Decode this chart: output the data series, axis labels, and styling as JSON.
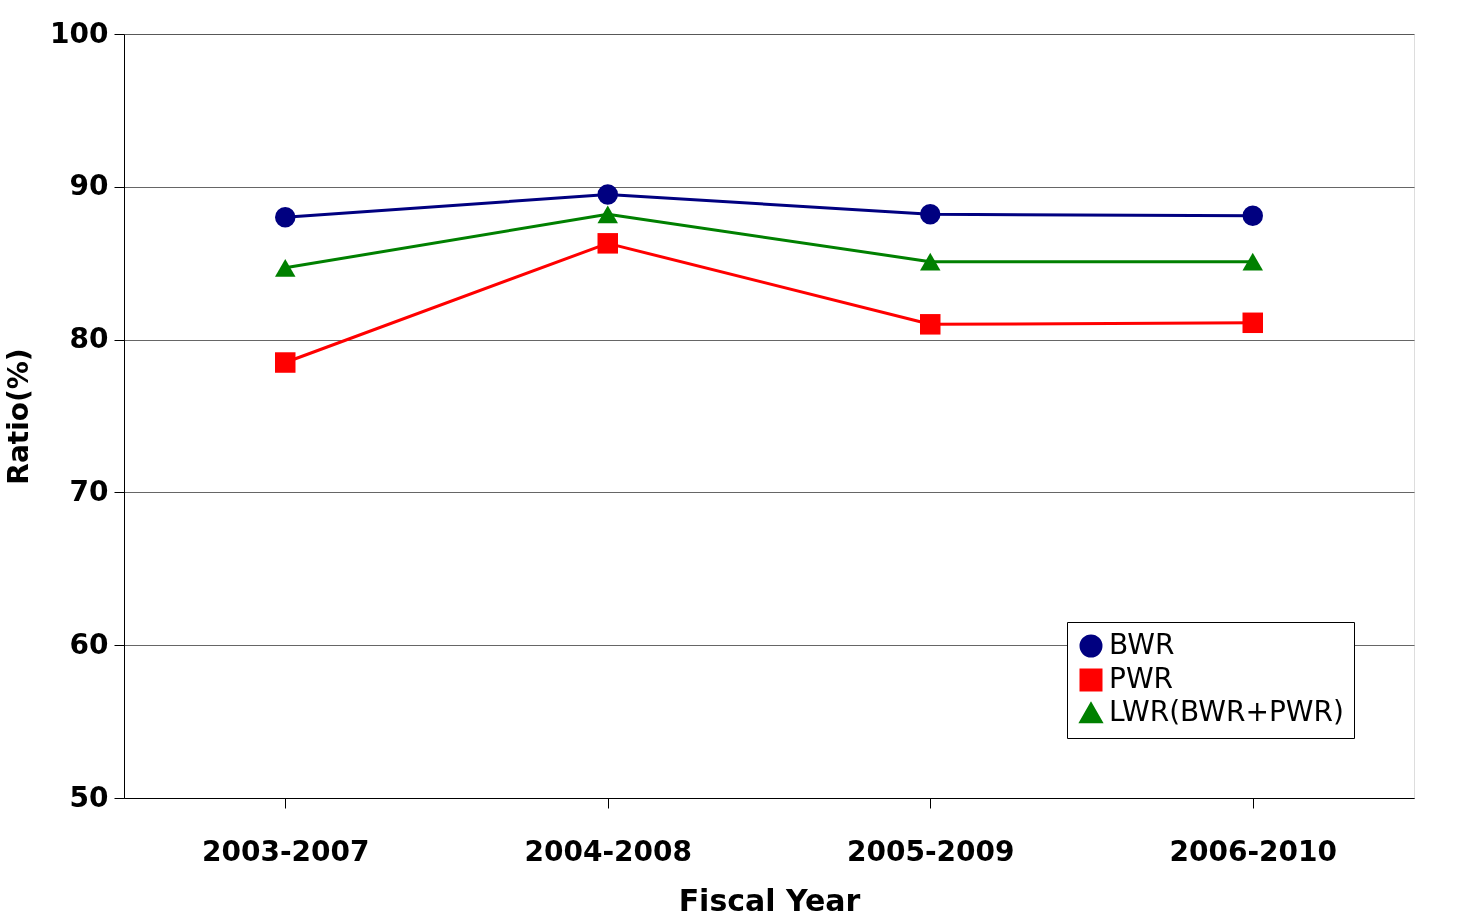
{
  "chart_data": {
    "type": "line",
    "xlabel": "Fiscal Year",
    "ylabel": "Ratio(%)",
    "categories": [
      "2003-2007",
      "2004-2008",
      "2005-2009",
      "2006-2010"
    ],
    "series": [
      {
        "name": "BWR",
        "color": "#000080",
        "marker": "circle",
        "values": [
          88.0,
          89.5,
          88.2,
          88.1
        ]
      },
      {
        "name": "PWR",
        "color": "#ff0000",
        "marker": "square",
        "values": [
          78.5,
          86.3,
          81.0,
          81.1
        ]
      },
      {
        "name": "LWR(BWR+PWR)",
        "color": "#008000",
        "marker": "triangle",
        "values": [
          84.7,
          88.2,
          85.1,
          85.1
        ]
      }
    ],
    "ylim": [
      50,
      100
    ],
    "yticks": [
      50,
      60,
      70,
      80,
      90,
      100
    ],
    "grid": "y",
    "legend": "bottom right"
  }
}
